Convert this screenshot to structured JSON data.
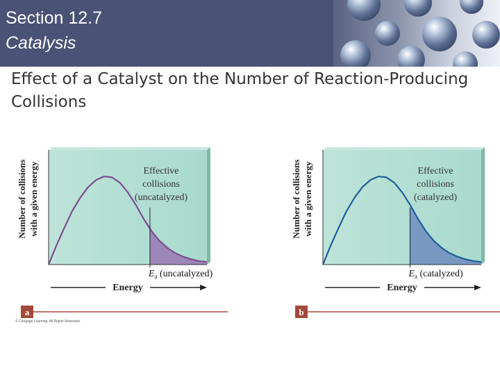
{
  "header": {
    "section_number": "Section 12.7",
    "section_title": "Catalysis"
  },
  "slide": {
    "title": "Effect of a Catalyst on the Number of Reaction-Producing Collisions"
  },
  "credit": "© Cengage Learning. All Rights Reserved.",
  "colors": {
    "header_band": "#4a5275",
    "plot_background": "#a9dacd",
    "panel_a_curve": "#7a4f8e",
    "panel_a_fill": "#9a78b4",
    "panel_b_curve": "#1f5f9a",
    "panel_b_fill": "#6f8cc0",
    "panel_label": "#a34a3a"
  },
  "chart_data": [
    {
      "type": "area",
      "panel_label": "a",
      "xlabel": "Energy",
      "ylabel_lines": [
        "Number of collisions",
        "with a given energy"
      ],
      "annotation_lines": [
        "Effective",
        "collisions",
        "(uncatalyzed)"
      ],
      "threshold_label_symbol": "E",
      "threshold_label_subscript": "a",
      "threshold_label_text": "(uncatalyzed)",
      "threshold_energy": 0.64,
      "x": [
        0.0,
        0.05,
        0.1,
        0.15,
        0.2,
        0.25,
        0.3,
        0.35,
        0.4,
        0.45,
        0.5,
        0.55,
        0.6,
        0.65,
        0.7,
        0.75,
        0.8,
        0.85,
        0.9,
        0.95,
        1.0
      ],
      "y": [
        0.0,
        0.22,
        0.42,
        0.61,
        0.76,
        0.88,
        0.96,
        1.0,
        0.99,
        0.93,
        0.82,
        0.68,
        0.52,
        0.38,
        0.27,
        0.19,
        0.13,
        0.09,
        0.06,
        0.04,
        0.03
      ],
      "xlim": [
        0,
        1
      ],
      "ylim": [
        0,
        1.3
      ]
    },
    {
      "type": "area",
      "panel_label": "b",
      "xlabel": "Energy",
      "ylabel_lines": [
        "Number of collisions",
        "with a given energy"
      ],
      "annotation_lines": [
        "Effective",
        "collisions",
        "(catalyzed)"
      ],
      "threshold_label_symbol": "E",
      "threshold_label_subscript": "a",
      "threshold_label_text": "(catalyzed)",
      "threshold_energy": 0.55,
      "x": [
        0.0,
        0.05,
        0.1,
        0.15,
        0.2,
        0.25,
        0.3,
        0.35,
        0.4,
        0.45,
        0.5,
        0.55,
        0.6,
        0.65,
        0.7,
        0.75,
        0.8,
        0.85,
        0.9,
        0.95,
        1.0
      ],
      "y": [
        0.0,
        0.22,
        0.42,
        0.61,
        0.76,
        0.88,
        0.96,
        1.0,
        0.99,
        0.93,
        0.82,
        0.68,
        0.52,
        0.38,
        0.27,
        0.19,
        0.13,
        0.09,
        0.06,
        0.04,
        0.03
      ],
      "xlim": [
        0,
        1
      ],
      "ylim": [
        0,
        1.3
      ]
    }
  ]
}
